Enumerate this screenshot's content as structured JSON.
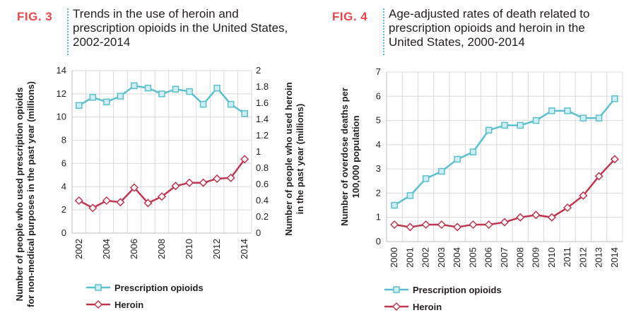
{
  "figures": [
    {
      "label": "FIG. 3",
      "title_lines": [
        "Trends in the use of heroin and",
        "prescription opioids in the United States,",
        "2002-2014"
      ]
    },
    {
      "label": "FIG. 4",
      "title_lines": [
        "Age-adjusted rates of death related to",
        "prescription opioids and heroin in the",
        "United States, 2000-2014"
      ]
    }
  ],
  "colors": {
    "prescription": "#5cc0cc",
    "heroin": "#c0364f",
    "grid": "#d9d9d9",
    "accent": "#e8474c"
  },
  "chart_data": [
    {
      "type": "line",
      "title": "Trends in the use of heroin and prescription opioids in the United States, 2002-2014",
      "x": [
        2002,
        2003,
        2004,
        2005,
        2006,
        2007,
        2008,
        2009,
        2010,
        2011,
        2012,
        2013,
        2014
      ],
      "xtick_labels": [
        "2002",
        "2004",
        "2006",
        "2008",
        "2010",
        "2012",
        "2014"
      ],
      "ylabel_lines": [
        "Number of people who used prescription opioids",
        "for non-medical purposes in the past year (millions)"
      ],
      "y2label_lines": [
        "Number of people who used heroin",
        "in the past year (millions)"
      ],
      "ylim": [
        0,
        14
      ],
      "yticks": [
        "0",
        "2",
        "4",
        "6",
        "8",
        "10",
        "12",
        "14"
      ],
      "y2lim": [
        0,
        2
      ],
      "y2ticks": [
        "0",
        "0.2",
        "0.4",
        "0.6",
        "0.8",
        "1",
        "1.2",
        "1.4",
        "1.6",
        "1.8",
        "2"
      ],
      "series": [
        {
          "name": "Prescription opioids",
          "axis": "left",
          "values": [
            11.0,
            11.7,
            11.3,
            11.8,
            12.7,
            12.5,
            12.0,
            12.4,
            12.2,
            11.1,
            12.5,
            11.1,
            10.3
          ]
        },
        {
          "name": "Heroin",
          "axis": "right",
          "values": [
            0.4,
            0.31,
            0.4,
            0.38,
            0.56,
            0.37,
            0.45,
            0.58,
            0.62,
            0.62,
            0.67,
            0.68,
            0.91
          ]
        }
      ],
      "legend": [
        "Prescription opioids",
        "Heroin"
      ],
      "grid": true
    },
    {
      "type": "line",
      "title": "Age-adjusted rates of death related to prescription opioids and heroin in the United States, 2000-2014",
      "x": [
        2000,
        2001,
        2002,
        2003,
        2004,
        2005,
        2006,
        2007,
        2008,
        2009,
        2010,
        2011,
        2012,
        2013,
        2014
      ],
      "xtick_labels": [
        "2000",
        "2001",
        "2002",
        "2003",
        "2004",
        "2005",
        "2006",
        "2007",
        "2008",
        "2009",
        "2010",
        "2011",
        "2012",
        "2013",
        "2014"
      ],
      "ylabel_lines": [
        "Number of overdose deaths per",
        "100,000 population"
      ],
      "ylim": [
        0,
        7
      ],
      "yticks": [
        "0",
        "1",
        "2",
        "3",
        "4",
        "5",
        "6",
        "7"
      ],
      "series": [
        {
          "name": "Prescription opioids",
          "axis": "left",
          "values": [
            1.5,
            1.9,
            2.6,
            2.9,
            3.4,
            3.7,
            4.6,
            4.8,
            4.8,
            5.0,
            5.4,
            5.4,
            5.1,
            5.1,
            5.9
          ]
        },
        {
          "name": "Heroin",
          "axis": "left",
          "values": [
            0.7,
            0.6,
            0.7,
            0.7,
            0.6,
            0.7,
            0.7,
            0.8,
            1.0,
            1.1,
            1.0,
            1.4,
            1.9,
            2.7,
            3.4
          ]
        }
      ],
      "legend": [
        "Prescription opioids",
        "Heroin"
      ],
      "grid": true
    }
  ]
}
